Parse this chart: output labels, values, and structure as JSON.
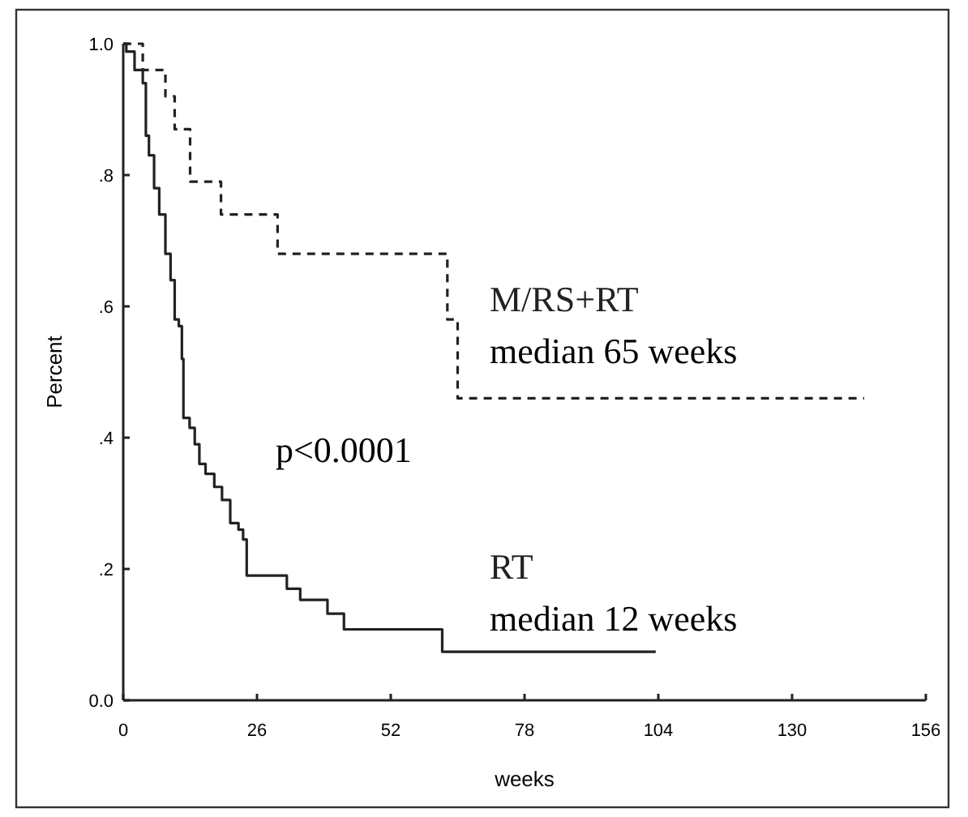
{
  "chart_data": {
    "type": "step",
    "xlabel": "weeks",
    "ylabel": "Percent",
    "annotations": [
      "median 65 weeks",
      "p<0.0001",
      "median 12 weeks"
    ],
    "xlim": [
      0,
      156
    ],
    "xticks": [
      0,
      26,
      52,
      78,
      104,
      130,
      156
    ],
    "ylim": [
      0,
      1
    ],
    "yticks": [
      {
        "value": 0,
        "label": "0.0"
      },
      {
        "value": 0.2,
        "label": ".2"
      },
      {
        "value": 0.4,
        "label": ".4"
      },
      {
        "value": 0.6,
        "label": ".6"
      },
      {
        "value": 0.8,
        "label": ".8"
      },
      {
        "value": 1,
        "label": "1.0"
      }
    ],
    "legend": false,
    "grid": false,
    "series": [
      {
        "name": "M/RS+RT",
        "color": "#222222",
        "line_style": "dashed",
        "x": [
          0,
          3.8,
          8.2,
          10,
          13,
          19,
          30,
          63,
          65,
          144
        ],
        "values": [
          1,
          0.96,
          0.92,
          0.87,
          0.79,
          0.74,
          0.68,
          0.58,
          0.46,
          0.46
        ]
      },
      {
        "name": "RT",
        "color": "#222222",
        "line_style": "solid",
        "x": [
          0,
          0.6,
          2.2,
          3.8,
          4.4,
          5,
          6,
          7,
          8.2,
          9.2,
          10,
          10.8,
          11.4,
          11.7,
          12.9,
          13.9,
          14.8,
          16,
          17.7,
          19.2,
          20.8,
          22.4,
          23.3,
          24,
          31.8,
          34.4,
          39.7,
          42.9,
          62,
          103.5
        ],
        "values": [
          1,
          0.988,
          0.96,
          0.94,
          0.86,
          0.83,
          0.78,
          0.74,
          0.68,
          0.64,
          0.58,
          0.57,
          0.52,
          0.43,
          0.415,
          0.39,
          0.36,
          0.345,
          0.325,
          0.305,
          0.27,
          0.26,
          0.245,
          0.19,
          0.17,
          0.153,
          0.132,
          0.108,
          0.074,
          0.074
        ]
      }
    ]
  }
}
